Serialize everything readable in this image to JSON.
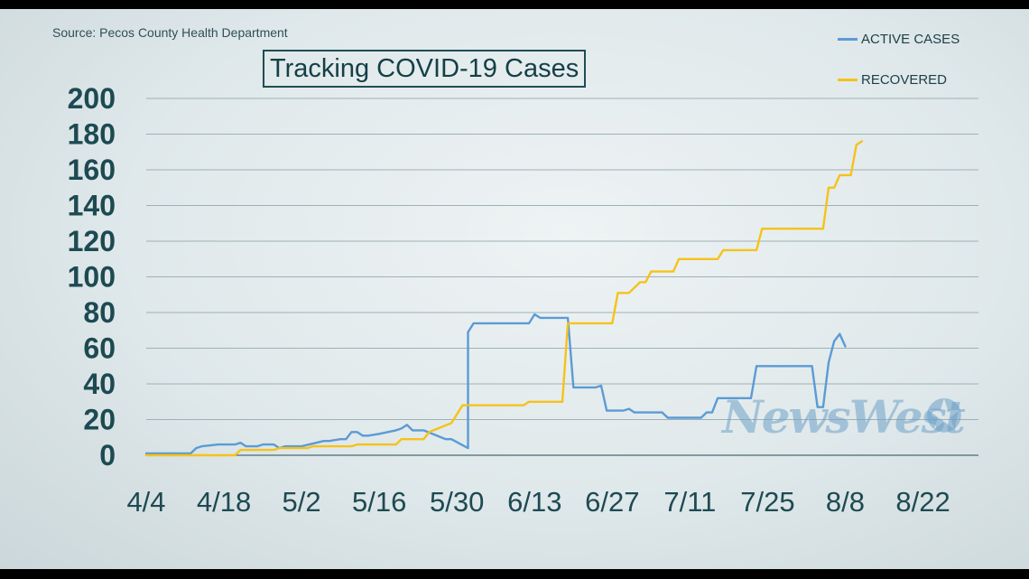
{
  "source": "Source: Pecos County Health Department",
  "watermark": "NewsWest",
  "chart_data": {
    "type": "line",
    "title": "Tracking COVID-19 Cases",
    "xlabel": "",
    "ylabel": "",
    "ylim": [
      0,
      200
    ],
    "yticks": [
      0,
      20,
      40,
      60,
      80,
      100,
      120,
      140,
      160,
      180,
      200
    ],
    "xlim": [
      "2020-04-04",
      "2020-09-01"
    ],
    "xticks": [
      "4/4",
      "4/18",
      "5/2",
      "5/16",
      "5/30",
      "6/13",
      "6/27",
      "7/11",
      "7/25",
      "8/8",
      "8/22"
    ],
    "grid": true,
    "legend_position": "top-right",
    "series": [
      {
        "name": "ACTIVE CASES",
        "color": "#5b9bd5",
        "x": [
          "2020-04-04",
          "2020-04-12",
          "2020-04-13",
          "2020-04-14",
          "2020-04-17",
          "2020-04-20",
          "2020-04-21",
          "2020-04-22",
          "2020-04-24",
          "2020-04-25",
          "2020-04-27",
          "2020-04-28",
          "2020-04-29",
          "2020-05-01",
          "2020-05-02",
          "2020-05-06",
          "2020-05-07",
          "2020-05-09",
          "2020-05-10",
          "2020-05-11",
          "2020-05-12",
          "2020-05-13",
          "2020-05-14",
          "2020-05-16",
          "2020-05-19",
          "2020-05-20",
          "2020-05-21",
          "2020-05-22",
          "2020-05-23",
          "2020-05-24",
          "2020-05-28",
          "2020-05-29",
          "2020-06-01",
          "2020-06-01",
          "2020-06-02",
          "2020-06-12",
          "2020-06-13",
          "2020-06-14",
          "2020-06-19",
          "2020-06-20",
          "2020-06-24",
          "2020-06-25",
          "2020-06-26",
          "2020-06-29",
          "2020-06-30",
          "2020-07-01",
          "2020-07-06",
          "2020-07-07",
          "2020-07-13",
          "2020-07-14",
          "2020-07-15",
          "2020-07-16",
          "2020-07-22",
          "2020-07-23",
          "2020-08-02",
          "2020-08-03",
          "2020-08-04",
          "2020-08-05",
          "2020-08-06",
          "2020-08-07",
          "2020-08-08"
        ],
        "values": [
          1,
          1,
          4,
          5,
          6,
          6,
          7,
          5,
          5,
          6,
          6,
          4,
          5,
          5,
          5,
          8,
          8,
          9,
          9,
          13,
          13,
          11,
          11,
          12,
          14,
          15,
          17,
          14,
          14,
          14,
          9,
          9,
          4,
          69,
          74,
          74,
          79,
          77,
          77,
          38,
          38,
          39,
          25,
          25,
          26,
          24,
          24,
          21,
          21,
          24,
          24,
          32,
          32,
          50,
          50,
          27,
          27,
          52,
          64,
          68,
          61
        ]
      },
      {
        "name": "RECOVERED",
        "color": "#f6c21a",
        "x": [
          "2020-04-04",
          "2020-04-20",
          "2020-04-21",
          "2020-04-27",
          "2020-04-28",
          "2020-05-03",
          "2020-05-04",
          "2020-05-11",
          "2020-05-12",
          "2020-05-19",
          "2020-05-20",
          "2020-05-24",
          "2020-05-25",
          "2020-05-29",
          "2020-05-31",
          "2020-06-11",
          "2020-06-12",
          "2020-06-18",
          "2020-06-19",
          "2020-06-27",
          "2020-06-28",
          "2020-06-30",
          "2020-07-02",
          "2020-07-03",
          "2020-07-04",
          "2020-07-08",
          "2020-07-09",
          "2020-07-16",
          "2020-07-17",
          "2020-07-23",
          "2020-07-24",
          "2020-08-04",
          "2020-08-05",
          "2020-08-06",
          "2020-08-07",
          "2020-08-09",
          "2020-08-10",
          "2020-08-11"
        ],
        "values": [
          0,
          0,
          3,
          3,
          4,
          4,
          5,
          5,
          6,
          6,
          9,
          9,
          13,
          18,
          28,
          28,
          30,
          30,
          74,
          74,
          91,
          91,
          97,
          97,
          103,
          103,
          110,
          110,
          115,
          115,
          127,
          127,
          150,
          150,
          157,
          157,
          174,
          176
        ]
      }
    ]
  }
}
